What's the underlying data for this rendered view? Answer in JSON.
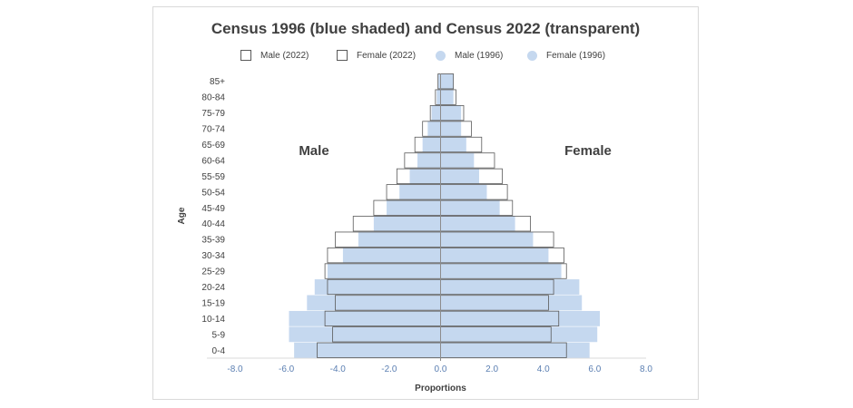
{
  "chart_data": {
    "type": "bar",
    "orientation": "horizontal",
    "title": "Census 1996 (blue shaded) and Census 2022 (transparent)",
    "xlabel": "Proportions",
    "ylabel": "Age",
    "left_label": "Male",
    "right_label": "Female",
    "xlim": [
      -8.0,
      8.0
    ],
    "x_ticks": [
      "-8.0",
      "-6.0",
      "-4.0",
      "-2.0",
      "0.0",
      "2.0",
      "4.0",
      "6.0",
      "8.0"
    ],
    "categories": [
      "0-4",
      "5-9",
      "10-14",
      "15-19",
      "20-24",
      "25-29",
      "30-34",
      "35-39",
      "40-44",
      "45-49",
      "50-54",
      "55-59",
      "60-64",
      "65-69",
      "70-74",
      "75-79",
      "80-84",
      "85+"
    ],
    "legend": [
      "Male (2022)",
      "Female (2022)",
      "Male (1996)",
      "Female (1996)"
    ],
    "legend_position": "top",
    "colors": {
      "shaded": "#c5d8ef",
      "outline": "#595959"
    },
    "series": [
      {
        "name": "Male (1996)",
        "values": [
          -5.7,
          -5.9,
          -5.9,
          -5.2,
          -4.9,
          -4.4,
          -3.8,
          -3.2,
          -2.6,
          -2.1,
          -1.6,
          -1.2,
          -0.9,
          -0.7,
          -0.5,
          -0.35,
          -0.15,
          -0.1
        ]
      },
      {
        "name": "Female (1996)",
        "values": [
          5.8,
          6.1,
          6.2,
          5.5,
          5.4,
          4.7,
          4.2,
          3.6,
          2.9,
          2.3,
          1.8,
          1.5,
          1.3,
          1.0,
          0.8,
          0.8,
          0.5,
          0.5
        ]
      },
      {
        "name": "Male (2022)",
        "values": [
          -4.8,
          -4.2,
          -4.5,
          -4.1,
          -4.4,
          -4.5,
          -4.4,
          -4.1,
          -3.4,
          -2.6,
          -2.1,
          -1.7,
          -1.4,
          -1.0,
          -0.7,
          -0.4,
          -0.2,
          -0.1
        ]
      },
      {
        "name": "Female (2022)",
        "values": [
          4.9,
          4.3,
          4.6,
          4.2,
          4.4,
          4.9,
          4.8,
          4.4,
          3.5,
          2.8,
          2.6,
          2.4,
          2.1,
          1.6,
          1.2,
          0.9,
          0.6,
          0.5
        ]
      }
    ]
  }
}
